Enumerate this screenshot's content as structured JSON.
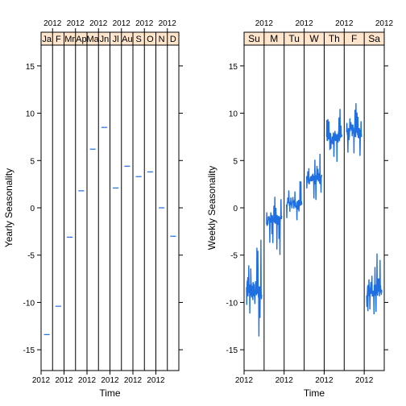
{
  "chart_data": [
    {
      "type": "line",
      "ylabel": "Yearly Seasonality",
      "xlabel": "Time",
      "ylim": [
        -17.2,
        17.2
      ],
      "yticks": [
        -15,
        -10,
        -5,
        0,
        5,
        10,
        15
      ],
      "panels": [
        "Ja",
        "F",
        "Mr",
        "Ap",
        "Ma",
        "Jn",
        "Jl",
        "Au",
        "S",
        "O",
        "N",
        "D"
      ],
      "panel_year_label": "2012",
      "values": [
        -13.4,
        -10.4,
        -3.1,
        1.8,
        6.2,
        8.5,
        2.1,
        4.4,
        3.3,
        3.8,
        0.0,
        -3.0
      ],
      "grid": false,
      "colors": {
        "line": "#1f6fe0",
        "strip": "#ffe5cc",
        "axis": "#000000"
      }
    },
    {
      "type": "line",
      "ylabel": "Weekly Seasonality",
      "xlabel": "Time",
      "ylim": [
        -17.2,
        17.2
      ],
      "yticks": [
        -15,
        -10,
        -5,
        0,
        5,
        10,
        15
      ],
      "panels": [
        "Su",
        "M",
        "Tu",
        "W",
        "Th",
        "F",
        "Sa"
      ],
      "panel_year_label": "2012",
      "panel_means": [
        -8.7,
        -1.3,
        0.5,
        3.0,
        7.5,
        8.0,
        -8.7
      ],
      "panel_amplitude": [
        4.0,
        2.5,
        1.6,
        2.2,
        2.3,
        2.4,
        2.8
      ],
      "grid": false,
      "colors": {
        "line": "#1f6fe0",
        "strip": "#ffe5cc",
        "axis": "#000000"
      }
    }
  ]
}
